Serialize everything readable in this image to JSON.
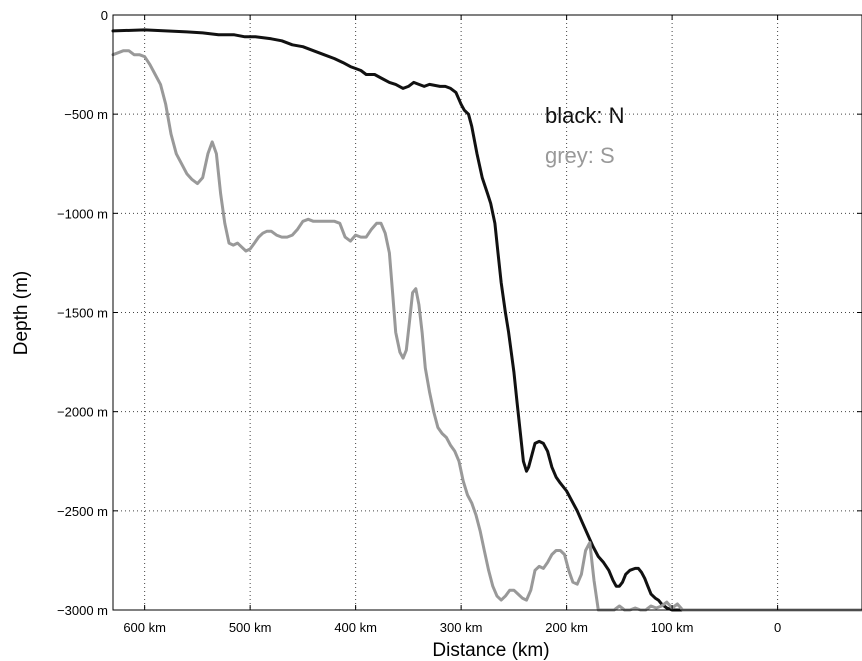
{
  "chart_data": {
    "type": "line",
    "xlabel": "Distance (km)",
    "ylabel": "Depth (m)",
    "xlim": [
      630,
      -80
    ],
    "ylim": [
      -3000,
      0
    ],
    "x_inverted": true,
    "grid": true,
    "x_ticks": [
      {
        "value": 600,
        "label": "600 km"
      },
      {
        "value": 500,
        "label": "500 km"
      },
      {
        "value": 400,
        "label": "400 km"
      },
      {
        "value": 300,
        "label": "300 km"
      },
      {
        "value": 200,
        "label": "200 km"
      },
      {
        "value": 100,
        "label": "100 km"
      },
      {
        "value": 0,
        "label": "0"
      }
    ],
    "y_ticks": [
      {
        "value": 0,
        "label": "0"
      },
      {
        "value": -500,
        "label": "−500 m"
      },
      {
        "value": -1000,
        "label": "−1000 m"
      },
      {
        "value": -1500,
        "label": "−1500 m"
      },
      {
        "value": -2000,
        "label": "−2000 m"
      },
      {
        "value": -2500,
        "label": "−2500 m"
      },
      {
        "value": -3000,
        "label": "−3000 m"
      }
    ],
    "annotations": [
      {
        "text": "black: N",
        "color": "#111111"
      },
      {
        "text": "grey: S",
        "color": "#999999"
      }
    ],
    "series": [
      {
        "color": "#111111",
        "x": [
          630,
          600,
          580,
          560,
          545,
          530,
          515,
          505,
          495,
          480,
          470,
          460,
          450,
          440,
          430,
          420,
          412,
          405,
          400,
          395,
          390,
          382,
          375,
          368,
          362,
          355,
          350,
          345,
          340,
          335,
          330,
          320,
          315,
          310,
          305,
          300,
          297,
          293,
          290,
          285,
          280,
          275,
          272,
          268,
          265,
          262,
          258,
          255,
          250,
          247,
          244,
          241,
          238,
          236,
          233,
          230,
          226,
          222,
          218,
          214,
          210,
          206,
          200,
          195,
          190,
          185,
          180,
          175,
          170,
          165,
          160,
          156,
          153,
          150,
          147,
          144,
          140,
          135,
          132,
          129,
          126,
          123,
          120,
          116,
          113,
          110,
          105,
          100,
          95,
          90,
          80,
          60,
          40,
          20,
          0,
          -20,
          -40,
          -60,
          -80
        ],
        "y": [
          -80,
          -75,
          -80,
          -85,
          -90,
          -100,
          -100,
          -110,
          -110,
          -120,
          -130,
          -150,
          -160,
          -180,
          -200,
          -220,
          -240,
          -260,
          -270,
          -280,
          -300,
          -300,
          -320,
          -340,
          -350,
          -370,
          -360,
          -340,
          -350,
          -360,
          -350,
          -360,
          -360,
          -370,
          -390,
          -450,
          -480,
          -500,
          -560,
          -700,
          -820,
          -900,
          -950,
          -1050,
          -1200,
          -1350,
          -1500,
          -1600,
          -1800,
          -1950,
          -2100,
          -2250,
          -2300,
          -2280,
          -2220,
          -2160,
          -2150,
          -2160,
          -2200,
          -2280,
          -2330,
          -2360,
          -2400,
          -2450,
          -2500,
          -2560,
          -2620,
          -2680,
          -2730,
          -2760,
          -2800,
          -2850,
          -2880,
          -2880,
          -2860,
          -2820,
          -2800,
          -2790,
          -2790,
          -2810,
          -2840,
          -2880,
          -2920,
          -2940,
          -2950,
          -2970,
          -2990,
          -3000,
          -3000,
          -3000,
          -3000,
          -3000,
          -3000,
          -3000,
          -3000,
          -3000,
          -3000,
          -3000,
          -3000
        ]
      },
      {
        "color": "#999999",
        "x": [
          630,
          620,
          615,
          610,
          605,
          600,
          595,
          590,
          585,
          580,
          575,
          570,
          565,
          560,
          555,
          550,
          545,
          540,
          536,
          532,
          528,
          524,
          520,
          516,
          512,
          508,
          504,
          500,
          496,
          492,
          488,
          484,
          480,
          475,
          470,
          465,
          460,
          455,
          450,
          445,
          440,
          435,
          430,
          425,
          420,
          415,
          410,
          405,
          400,
          395,
          390,
          385,
          380,
          376,
          372,
          368,
          365,
          362,
          358,
          355,
          352,
          349,
          346,
          343,
          340,
          337,
          334,
          330,
          326,
          322,
          318,
          314,
          310,
          306,
          302,
          298,
          294,
          290,
          286,
          282,
          278,
          274,
          270,
          266,
          262,
          258,
          254,
          250,
          246,
          242,
          238,
          234,
          230,
          226,
          222,
          218,
          214,
          210,
          206,
          202,
          198,
          194,
          190,
          186,
          182,
          178,
          174,
          170,
          165,
          160,
          155,
          150,
          145,
          140,
          135,
          130,
          125,
          120,
          115,
          110,
          105,
          100,
          95,
          90,
          80,
          60,
          40,
          20,
          0,
          -20,
          -40,
          -60,
          -80
        ],
        "y": [
          -200,
          -180,
          -180,
          -200,
          -200,
          -210,
          -250,
          -300,
          -350,
          -450,
          -600,
          -700,
          -750,
          -800,
          -830,
          -850,
          -820,
          -700,
          -640,
          -700,
          -900,
          -1050,
          -1150,
          -1160,
          -1150,
          -1170,
          -1190,
          -1180,
          -1150,
          -1120,
          -1100,
          -1090,
          -1090,
          -1110,
          -1120,
          -1120,
          -1110,
          -1080,
          -1040,
          -1030,
          -1040,
          -1040,
          -1040,
          -1040,
          -1040,
          -1050,
          -1120,
          -1140,
          -1110,
          -1120,
          -1120,
          -1080,
          -1050,
          -1050,
          -1100,
          -1200,
          -1400,
          -1600,
          -1700,
          -1730,
          -1690,
          -1550,
          -1400,
          -1380,
          -1460,
          -1600,
          -1780,
          -1900,
          -2000,
          -2080,
          -2110,
          -2130,
          -2170,
          -2200,
          -2250,
          -2350,
          -2420,
          -2460,
          -2520,
          -2600,
          -2700,
          -2800,
          -2880,
          -2930,
          -2950,
          -2930,
          -2900,
          -2900,
          -2920,
          -2940,
          -2950,
          -2900,
          -2800,
          -2780,
          -2790,
          -2760,
          -2720,
          -2700,
          -2700,
          -2720,
          -2800,
          -2860,
          -2870,
          -2820,
          -2700,
          -2660,
          -2850,
          -3000,
          -3000,
          -3000,
          -3000,
          -2980,
          -3000,
          -3000,
          -2990,
          -3000,
          -3000,
          -2980,
          -2990,
          -2980,
          -2960,
          -2990,
          -2970,
          -3000,
          -3000,
          -3000,
          -3000,
          -3000,
          -3000,
          -3000,
          -3000,
          -3000,
          -3000
        ]
      }
    ]
  }
}
